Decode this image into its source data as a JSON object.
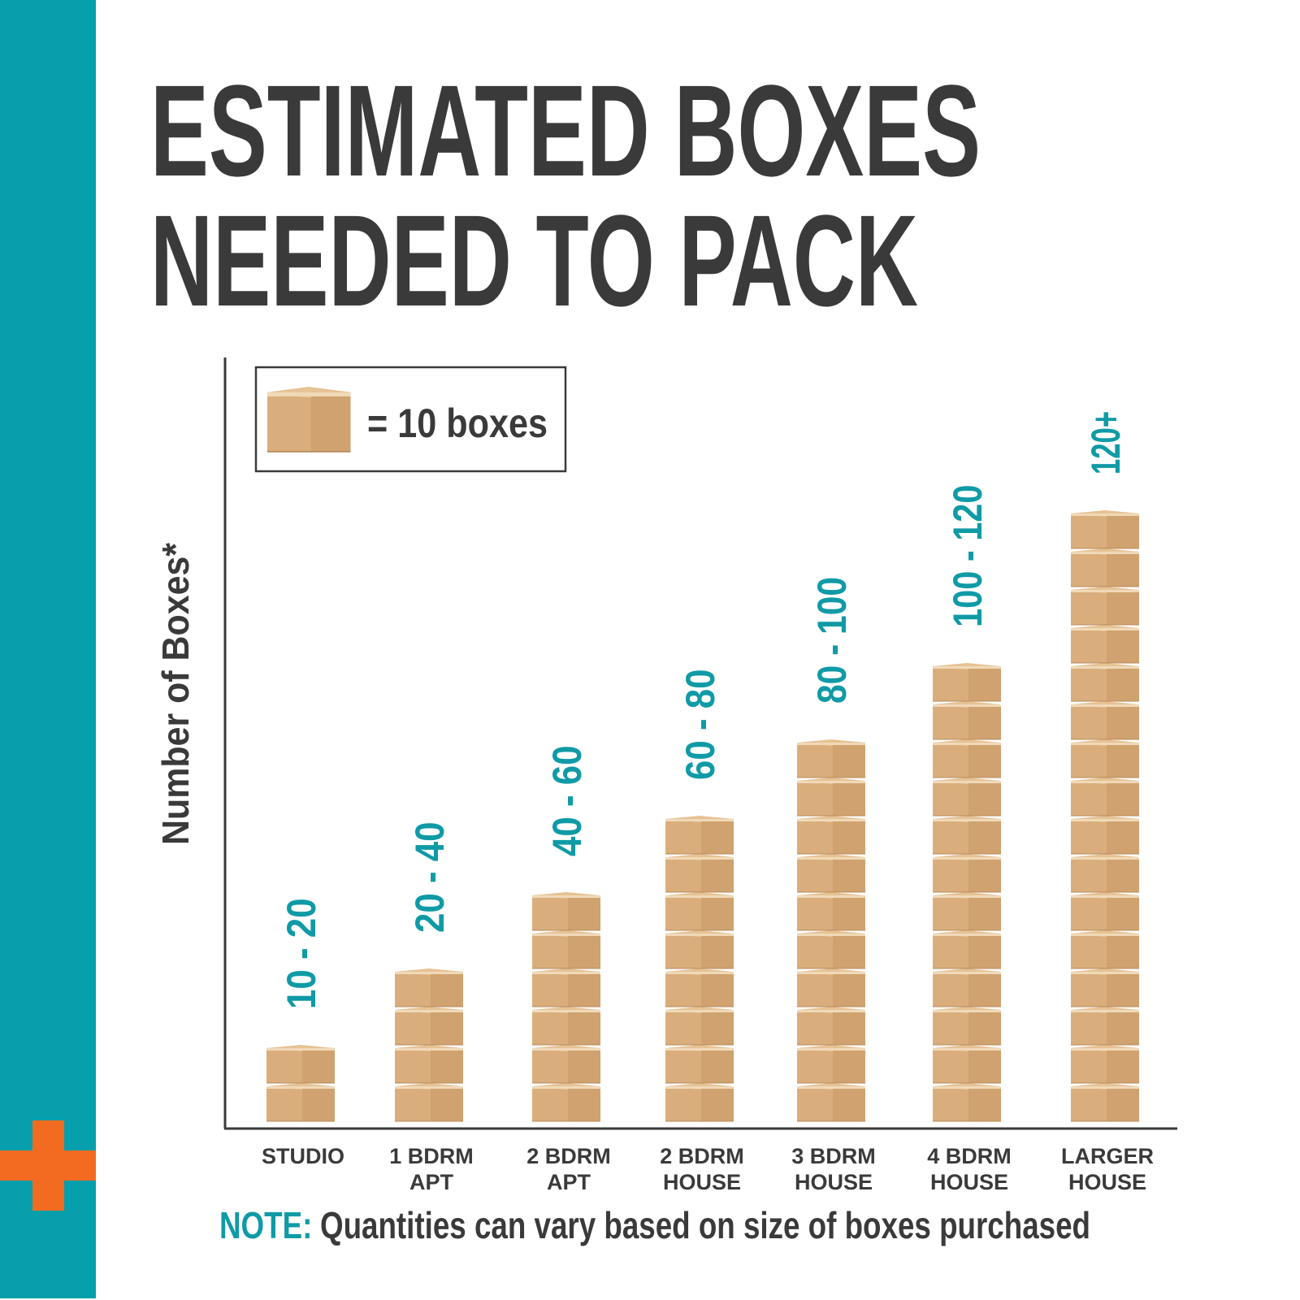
{
  "title_line1": "ESTIMATED BOXES",
  "title_line2": "NEEDED TO PACK",
  "colors": {
    "sidebar": "#079FAB",
    "accent": "#F26B21",
    "text": "#3A3A3A",
    "label": "#0F9AA6",
    "box": "#D9AE7C"
  },
  "legend": {
    "icon": "cardboard-box-icon",
    "text": "= 10 boxes"
  },
  "note": {
    "prefix": "NOTE:",
    "text": "Quantities can vary based on size of boxes purchased"
  },
  "chart_data": {
    "type": "bar",
    "title": "ESTIMATED BOXES NEEDED TO PACK",
    "ylabel": "Number of Boxes*",
    "xlabel": "",
    "unit_per_icon": 10,
    "categories": [
      {
        "line1": "STUDIO",
        "line2": ""
      },
      {
        "line1": "1 BDRM",
        "line2": "APT"
      },
      {
        "line1": "2 BDRM",
        "line2": "APT"
      },
      {
        "line1": "2 BDRM",
        "line2": "HOUSE"
      },
      {
        "line1": "3 BDRM",
        "line2": "HOUSE"
      },
      {
        "line1": "4 BDRM",
        "line2": "HOUSE"
      },
      {
        "line1": "LARGER",
        "line2": "HOUSE"
      }
    ],
    "range_labels": [
      "10 - 20",
      "20 - 40",
      "40 - 60",
      "60 - 80",
      "80 - 100",
      "100 - 120",
      "120+"
    ],
    "icon_counts": [
      2,
      4,
      6,
      8,
      10,
      12,
      16
    ],
    "grid": false
  }
}
